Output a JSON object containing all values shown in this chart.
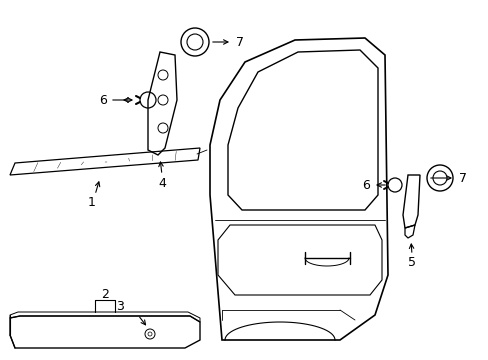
{
  "background_color": "#ffffff",
  "fig_width": 4.89,
  "fig_height": 3.6,
  "dpi": 100,
  "label_fontsize": 9,
  "line_color": "#000000"
}
